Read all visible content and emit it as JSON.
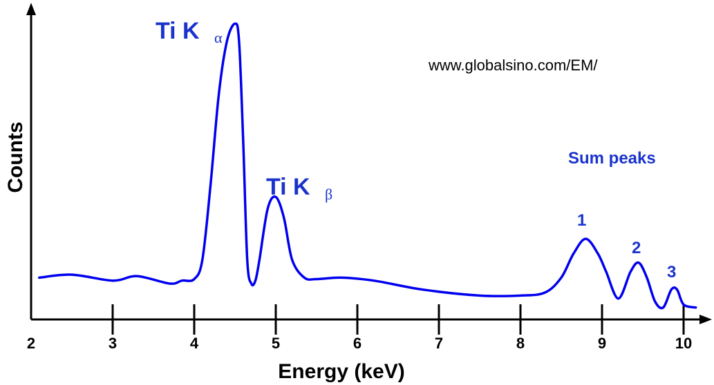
{
  "chart_data": {
    "type": "line",
    "xlabel": "Energy (keV)",
    "ylabel": "Counts",
    "xlim": [
      2,
      10.2
    ],
    "xticks": [
      2,
      3,
      4,
      5,
      6,
      7,
      8,
      9,
      10
    ],
    "xtick_labels": [
      "2",
      "3",
      "4",
      "5",
      "6",
      "7",
      "8",
      "9",
      "10"
    ],
    "y_units": "arbitrary counts (no tick labels)",
    "ylim": [
      0,
      100
    ],
    "grid": false,
    "series_color": "#0000ee",
    "label_color": "#1a33cc",
    "axis_color": "#000000",
    "series": [
      {
        "x": [
          2.1,
          2.5,
          3.0,
          3.3,
          3.7,
          3.85,
          4.0,
          4.1,
          4.2,
          4.3,
          4.4,
          4.5,
          4.55,
          4.6,
          4.65,
          4.7,
          4.75,
          4.8,
          4.9,
          5.0,
          5.1,
          5.2,
          5.35,
          5.5,
          5.8,
          6.2,
          6.8,
          7.5,
          8.0,
          8.3,
          8.5,
          8.65,
          8.8,
          8.95,
          9.05,
          9.2,
          9.35,
          9.45,
          9.55,
          9.65,
          9.75,
          9.85,
          9.92,
          10.0,
          10.15
        ],
        "y": [
          14,
          15,
          13,
          14.5,
          12,
          13,
          13.5,
          20,
          45,
          75,
          93,
          99,
          93,
          60,
          20,
          12,
          13,
          20,
          37,
          41,
          34,
          20,
          14,
          13.5,
          14,
          13,
          10,
          8,
          8,
          9,
          14,
          22,
          27,
          22,
          16,
          7,
          16,
          19,
          14,
          6,
          4,
          10,
          10,
          5,
          4
        ]
      }
    ],
    "annotations": {
      "ka_main": "Ti K",
      "ka_sub": "α",
      "kb_main": "Ti K",
      "kb_sub": "β",
      "sum_title": "Sum peaks",
      "sum_1": "1",
      "sum_2": "2",
      "sum_3": "3",
      "url": "www.globalsino.com/EM/"
    }
  }
}
